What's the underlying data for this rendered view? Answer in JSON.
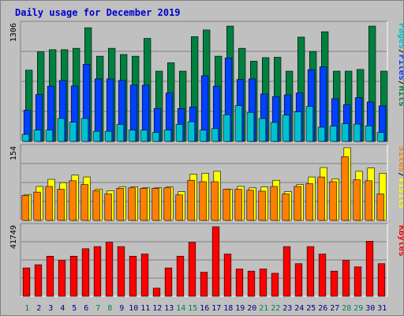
{
  "chart_data": {
    "type": "bar",
    "title": "Daily usage for December 2019",
    "categories": [
      "1",
      "2",
      "3",
      "4",
      "5",
      "6",
      "7",
      "8",
      "9",
      "10",
      "11",
      "12",
      "13",
      "14",
      "15",
      "16",
      "17",
      "18",
      "19",
      "20",
      "21",
      "22",
      "23",
      "24",
      "25",
      "26",
      "27",
      "28",
      "29",
      "30",
      "31"
    ],
    "weekend_days": [
      "1",
      "7",
      "8",
      "14",
      "15",
      "21",
      "22",
      "28",
      "29"
    ],
    "panels": [
      {
        "name": "pages-files-hits",
        "ymax_label": "1306",
        "ymax": 1306,
        "legend": [
          "Pages",
          "/",
          "Files",
          "/",
          "Hits"
        ],
        "legend_colors": [
          "#00c0d0",
          "#000000",
          "#0040ff",
          "#000000",
          "#008040"
        ],
        "series": [
          {
            "name": "Hits",
            "color": "#008040",
            "values": [
              796,
              1000,
              1025,
              1025,
              1040,
              1270,
              952,
              1040,
              971,
              952,
              1151,
              785,
              879,
              785,
              1170,
              1245,
              952,
              1288,
              1040,
              896,
              936,
              940,
              785,
              1165,
              1005,
              1225,
              785,
              785,
              804,
              1288,
              785
            ]
          },
          {
            "name": "Files",
            "color": "#0040ff",
            "values": [
              349,
              524,
              617,
              681,
              619,
              861,
              698,
              698,
              681,
              629,
              628,
              369,
              541,
              367,
              385,
              733,
              617,
              932,
              692,
              698,
              530,
              501,
              520,
              541,
              802,
              833,
              477,
              410,
              489,
              441,
              397
            ]
          },
          {
            "name": "Pages",
            "color": "#00c0d0",
            "values": [
              79,
              127,
              127,
              256,
              215,
              256,
              113,
              113,
              190,
              127,
              127,
              100,
              127,
              190,
              220,
              127,
              143,
              298,
              400,
              324,
              256,
              212,
              293,
              330,
              390,
              159,
              171,
              197,
              193,
              174,
              100
            ]
          }
        ]
      },
      {
        "name": "sites-visits",
        "ymax_label": "154",
        "ymax": 154,
        "legend": [
          "Sites",
          "/",
          "Visits"
        ],
        "legend_colors": [
          "#ff8000",
          "#000000",
          "#ffff00"
        ],
        "series": [
          {
            "name": "Visits",
            "color": "#ffff00",
            "values": [
              55,
              72,
              87,
              80,
              96,
              92,
              66,
              63,
              71,
              71,
              69,
              69,
              71,
              61,
              98,
              100,
              104,
              66,
              72,
              69,
              71,
              85,
              61,
              76,
              92,
              112,
              88,
              154,
              104,
              111,
              100
            ]
          },
          {
            "name": "Sites",
            "color": "#ff8000",
            "values": [
              53,
              60,
              72,
              66,
              84,
              76,
              63,
              56,
              68,
              69,
              68,
              68,
              69,
              54,
              85,
              82,
              82,
              66,
              66,
              64,
              62,
              72,
              56,
              72,
              78,
              92,
              82,
              135,
              86,
              84,
              56
            ]
          }
        ]
      },
      {
        "name": "kbytes",
        "ymax_label": "41749",
        "ymax": 41749,
        "legend": [
          "KBytes"
        ],
        "legend_colors": [
          "#ff0000"
        ],
        "series": [
          {
            "name": "KBytes",
            "color": "#ff0000",
            "values": [
              17017,
              18940,
              24070,
              21512,
              24070,
              28555,
              29835,
              32393,
              29835,
              24070,
              25352,
              4867,
              17017,
              24070,
              32393,
              14452,
              41749,
              25352,
              16377,
              15097,
              16377,
              13813,
              29835,
              19580,
              29835,
              25352,
              15097,
              21512,
              17654,
              33035,
              19580
            ]
          }
        ]
      }
    ]
  }
}
